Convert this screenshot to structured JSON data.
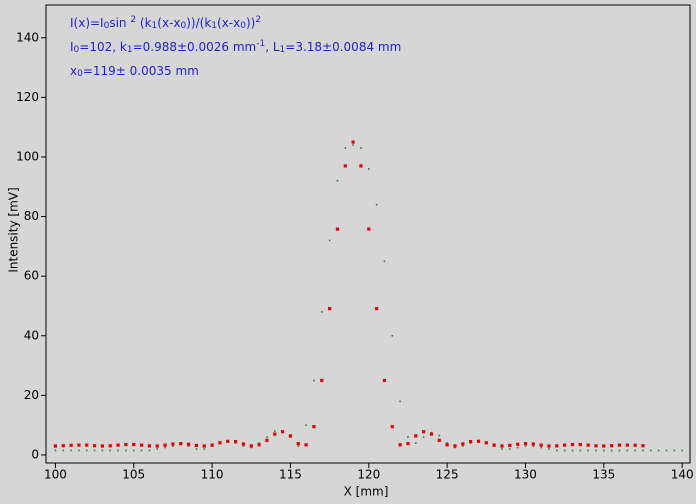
{
  "chart_data": {
    "type": "scatter",
    "xlabel": "X [mm]",
    "ylabel": "Intensity [mV]",
    "annotation": [
      [
        {
          "t": "I(x)=I"
        },
        {
          "t": "0",
          "s": "sub"
        },
        {
          "t": "sin "
        },
        {
          "t": "2",
          "s": "sup"
        },
        {
          "t": " (k"
        },
        {
          "t": "1",
          "s": "sub"
        },
        {
          "t": "(x-x"
        },
        {
          "t": "0",
          "s": "sub"
        },
        {
          "t": "))/(k"
        },
        {
          "t": "1",
          "s": "sub"
        },
        {
          "t": "(x-x"
        },
        {
          "t": "0",
          "s": "sub"
        },
        {
          "t": "))"
        },
        {
          "t": "2",
          "s": "sup"
        }
      ],
      [
        {
          "t": "I"
        },
        {
          "t": "0",
          "s": "sub"
        },
        {
          "t": "=102,  k"
        },
        {
          "t": "1",
          "s": "sub"
        },
        {
          "t": "=0.988±0.0026 mm"
        },
        {
          "t": "-1",
          "s": "sup"
        },
        {
          "t": ",   L"
        },
        {
          "t": "1",
          "s": "sub"
        },
        {
          "t": "=3.18±0.0084 mm"
        }
      ],
      [
        {
          "t": "x"
        },
        {
          "t": "0",
          "s": "sub"
        },
        {
          "t": "=119±  0.0035 mm"
        }
      ]
    ],
    "xlim": [
      99.4,
      140.5
    ],
    "ylim": [
      -2.7,
      151
    ],
    "xticks": [
      100,
      105,
      110,
      115,
      120,
      125,
      130,
      135,
      140
    ],
    "yticks": [
      0,
      20,
      40,
      60,
      80,
      100,
      120,
      140
    ],
    "series": [
      {
        "color": "#2e7d32",
        "size": 1.6,
        "x": [
          100,
          100.5,
          101,
          101.5,
          102,
          102.5,
          103,
          103.5,
          104,
          104.5,
          105,
          105.5,
          106,
          106.5,
          107,
          107.5,
          108,
          108.5,
          109,
          109.5,
          110,
          110.5,
          111,
          111.5,
          112,
          112.5,
          113,
          113.5,
          114,
          114.5,
          115,
          115.5,
          116,
          116.5,
          117,
          117.5,
          118,
          118.5,
          119,
          119.5,
          120,
          120.5,
          121,
          121.5,
          122,
          122.5,
          123,
          123.5,
          124,
          124.5,
          125,
          125.5,
          126,
          126.5,
          127,
          127.5,
          128,
          128.5,
          129,
          129.5,
          130,
          130.5,
          131,
          131.5,
          132,
          132.5,
          133,
          133.5,
          134,
          134.5,
          135,
          135.5,
          136,
          136.5,
          137,
          137.5,
          138,
          138.5,
          139,
          139.5,
          140
        ],
        "values": [
          1.5,
          1.5,
          1.5,
          1.5,
          1.5,
          1.5,
          1.5,
          1.5,
          1.5,
          1.5,
          1.5,
          1.5,
          1.5,
          2,
          2.5,
          3,
          3.5,
          3,
          2,
          2,
          3,
          4,
          4.5,
          4,
          3,
          2.5,
          4,
          6,
          8,
          8,
          6,
          3,
          10,
          25,
          48,
          72,
          92,
          103,
          104,
          103,
          96,
          84,
          65,
          40,
          18,
          6,
          4,
          6,
          7.5,
          6.5,
          4,
          2.5,
          3,
          4,
          4.5,
          4,
          3,
          2,
          2,
          2.5,
          3,
          3,
          2.5,
          2,
          1.5,
          1.5,
          1.5,
          1.5,
          1.5,
          1.5,
          1.5,
          1.5,
          1.5,
          1.5,
          1.5,
          1.5,
          1.5,
          1.5,
          1.5,
          1.5,
          1.5
        ]
      },
      {
        "color": "#e00000",
        "size": 3.2,
        "x": [
          100,
          100.5,
          101,
          101.5,
          102,
          102.5,
          103,
          103.5,
          104,
          104.5,
          105,
          105.5,
          106,
          106.5,
          107,
          107.5,
          108,
          108.5,
          109,
          109.5,
          110,
          110.5,
          111,
          111.5,
          112,
          112.5,
          113,
          113.5,
          114,
          114.5,
          115,
          115.5,
          116,
          116.5,
          117,
          117.5,
          118,
          118.5,
          119,
          119.5,
          120,
          120.5,
          121,
          121.5,
          122,
          122.5,
          123,
          123.5,
          124,
          124.5,
          125,
          125.5,
          126,
          126.5,
          127,
          127.5,
          128,
          128.5,
          129,
          129.5,
          130,
          130.5,
          131,
          131.5,
          132,
          132.5,
          133,
          133.5,
          134,
          134.5,
          135,
          135.5,
          136,
          136.5,
          137,
          137.5
        ],
        "values": [
          3.0,
          3.1,
          3.25,
          3.3,
          3.3,
          3.1,
          3.0,
          3.07,
          3.3,
          3.5,
          3.5,
          3.3,
          3.05,
          3.0,
          3.3,
          3.7,
          3.8,
          3.6,
          3.2,
          3.0,
          3.3,
          4.1,
          4.6,
          4.5,
          3.7,
          3.05,
          3.4,
          4.9,
          7.0,
          7.8,
          6.4,
          3.8,
          3.4,
          9.5,
          25,
          49.1,
          75.8,
          97,
          105,
          97,
          75.8,
          49.1,
          25,
          9.5,
          3.4,
          3.8,
          6.4,
          7.8,
          7.0,
          4.9,
          3.4,
          3.05,
          3.7,
          4.5,
          4.6,
          4.1,
          3.3,
          3.0,
          3.2,
          3.6,
          3.8,
          3.7,
          3.3,
          3.0,
          3.05,
          3.3,
          3.5,
          3.5,
          3.3,
          3.07,
          3.0,
          3.1,
          3.3,
          3.3,
          3.25,
          3.1
        ]
      }
    ]
  }
}
